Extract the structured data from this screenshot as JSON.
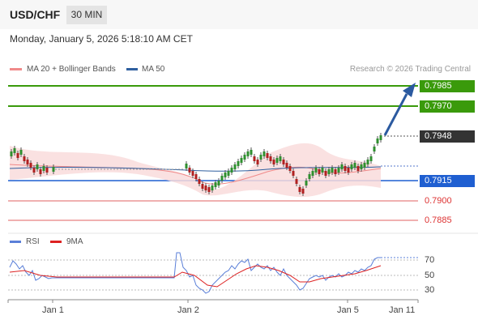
{
  "header": {
    "symbol": "USD/CHF",
    "timeframe": "30 MIN"
  },
  "datetime": "Monday, January 5, 2026 5:18:10 AM CET",
  "legend": {
    "bollinger": {
      "label": "MA 20 + Bollinger Bands",
      "color": "#f08a8a"
    },
    "ma50": {
      "label": "MA 50",
      "color": "#2f5f9f"
    }
  },
  "copyright": "Research © 2026 Trading Central",
  "levels": [
    {
      "value": "0.7985",
      "type": "resistance"
    },
    {
      "value": "0.7970",
      "type": "resistance"
    },
    {
      "value": "0.7948",
      "type": "last"
    },
    {
      "value": "0.7915",
      "type": "pivot"
    },
    {
      "value": "0.7900",
      "type": "support"
    },
    {
      "value": "0.7885",
      "type": "support"
    }
  ],
  "rsi_legend": {
    "rsi": {
      "label": "RSI",
      "color": "#5a7fd8"
    },
    "ma": {
      "label": "9MA",
      "color": "#dd2222"
    }
  },
  "rsi_levels": [
    "70",
    "50",
    "30"
  ],
  "x_labels": [
    "Jan 1",
    "Jan 2",
    "Jan 5",
    "Jan 11"
  ],
  "colors": {
    "green": "#3a9a0b",
    "blue": "#1f5fd1",
    "red": "#dd3333",
    "up": "#2f8f2f",
    "down": "#b02020",
    "arrow": "#2b5aa0"
  }
}
